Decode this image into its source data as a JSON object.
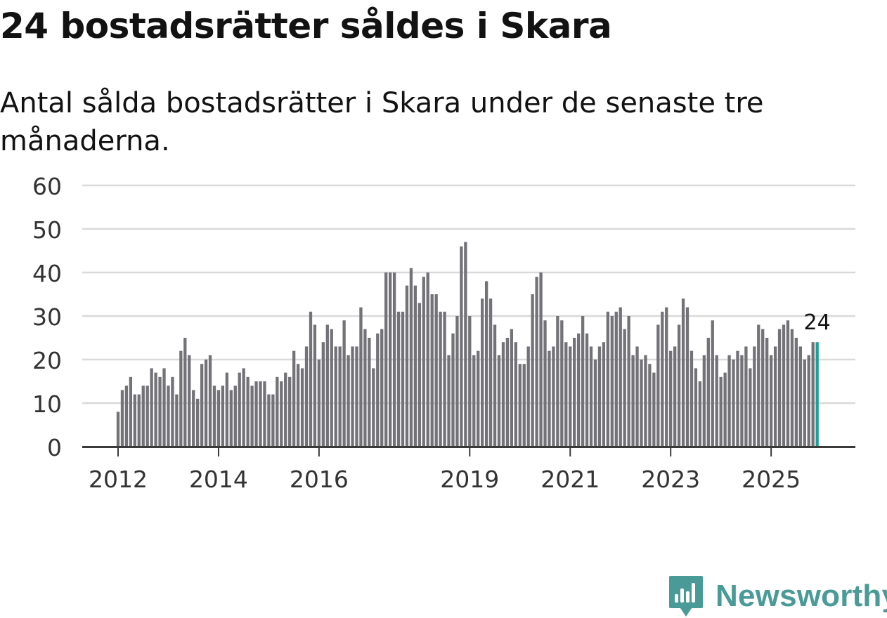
{
  "title": "24 bostadsrätter såldes i Skara",
  "subtitle": "Antal sålda bostadsrätter i Skara under de senaste tre månaderna.",
  "brand": "Newsworthy",
  "colors": {
    "bar": "#737277",
    "highlight": "#1a9e96",
    "grid": "#d9d9d9",
    "axis": "#3a3a3a",
    "brand": "#4a9b98"
  },
  "chart_data": {
    "type": "bar",
    "title": "24 bostadsrätter såldes i Skara",
    "subtitle": "Antal sålda bostadsrätter i Skara under de senaste tre månaderna.",
    "xlabel": "",
    "ylabel": "",
    "ylim": [
      0,
      60
    ],
    "yticks": [
      0,
      10,
      20,
      30,
      40,
      50,
      60
    ],
    "grid": true,
    "start": "2012-01",
    "frequency": "monthly",
    "xtick_labels": [
      {
        "label": "2012",
        "index": 0
      },
      {
        "label": "2014",
        "index": 24
      },
      {
        "label": "2016",
        "index": 48
      },
      {
        "label": "2019",
        "index": 84
      },
      {
        "label": "2021",
        "index": 108
      },
      {
        "label": "2023",
        "index": 132
      },
      {
        "label": "2025",
        "index": 156
      }
    ],
    "values": [
      8,
      13,
      14,
      16,
      12,
      12,
      14,
      14,
      18,
      17,
      16,
      18,
      14,
      16,
      12,
      22,
      25,
      21,
      13,
      11,
      19,
      20,
      21,
      14,
      13,
      14,
      17,
      13,
      14,
      17,
      18,
      16,
      14,
      15,
      15,
      15,
      12,
      12,
      16,
      15,
      17,
      16,
      22,
      19,
      18,
      23,
      31,
      28,
      20,
      24,
      28,
      27,
      23,
      23,
      29,
      21,
      23,
      23,
      32,
      27,
      25,
      18,
      26,
      27,
      40,
      40,
      40,
      31,
      31,
      37,
      41,
      37,
      33,
      39,
      40,
      35,
      35,
      31,
      31,
      21,
      26,
      30,
      46,
      47,
      30,
      21,
      22,
      34,
      38,
      34,
      28,
      21,
      24,
      25,
      27,
      24,
      19,
      19,
      23,
      35,
      39,
      40,
      29,
      22,
      23,
      30,
      29,
      24,
      23,
      25,
      26,
      30,
      26,
      23,
      20,
      23,
      24,
      31,
      30,
      31,
      32,
      27,
      30,
      21,
      23,
      20,
      21,
      19,
      17,
      28,
      31,
      32,
      22,
      23,
      28,
      34,
      32,
      22,
      18,
      15,
      21,
      25,
      29,
      21,
      16,
      17,
      21,
      20,
      22,
      21,
      23,
      18,
      23,
      28,
      27,
      25,
      21,
      23,
      27,
      28,
      29,
      27,
      25,
      23,
      20,
      21,
      24,
      24
    ],
    "highlight_index": 167,
    "annotation": "24"
  }
}
